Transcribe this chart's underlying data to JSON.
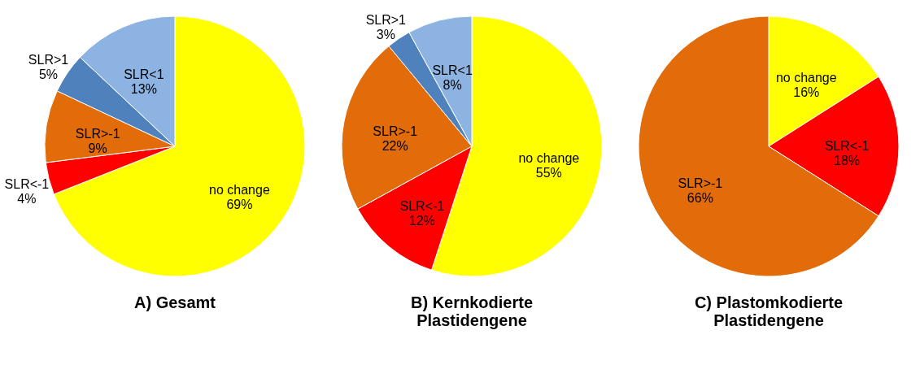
{
  "chart_data": [
    {
      "type": "pie",
      "title": "A)  Gesamt",
      "categories": [
        "no change",
        "SLR<-1",
        "SLR>-1",
        "SLR>1",
        "SLR<1"
      ],
      "values": [
        69,
        4,
        9,
        5,
        13
      ],
      "colors": [
        "#ffff00",
        "#ff0000",
        "#e36c0a",
        "#4f81bd",
        "#8db3e2"
      ],
      "value_labels": [
        "69%",
        "4%",
        "9%",
        "5%",
        "13%"
      ]
    },
    {
      "type": "pie",
      "title": "B) Kernkodierte Plastidengene",
      "categories": [
        "no change",
        "SLR<-1",
        "SLR>-1",
        "SLR>1",
        "SLR<1"
      ],
      "values": [
        55,
        12,
        22,
        3,
        8
      ],
      "colors": [
        "#ffff00",
        "#ff0000",
        "#e36c0a",
        "#4f81bd",
        "#8db3e2"
      ],
      "value_labels": [
        "55%",
        "12%",
        "22%",
        "3%",
        "8%"
      ]
    },
    {
      "type": "pie",
      "title": "C) Plastomkodierte Plastidengene",
      "categories": [
        "no change",
        "SLR<-1",
        "SLR>-1"
      ],
      "values": [
        16,
        18,
        66
      ],
      "colors": [
        "#ffff00",
        "#ff0000",
        "#e36c0a"
      ],
      "value_labels": [
        "16%",
        "18%",
        "66%"
      ]
    }
  ]
}
